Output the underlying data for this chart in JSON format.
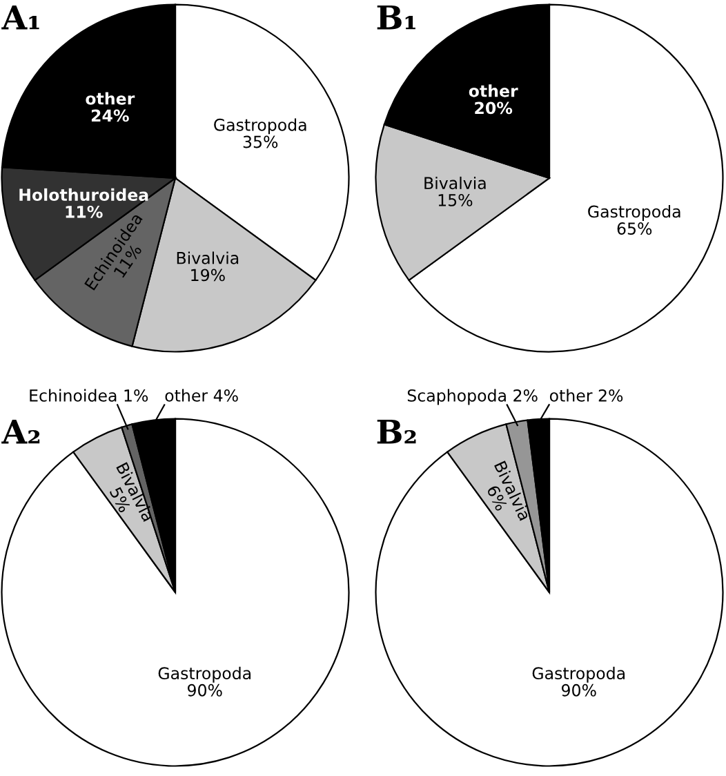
{
  "chart_data": [
    {
      "type": "pie",
      "title": "A₁",
      "categories": [
        "Gastropoda",
        "Bivalvia",
        "Echinoidea",
        "Holothuroidea",
        "other"
      ],
      "values": [
        35,
        19,
        11,
        11,
        24
      ],
      "colors": [
        "#ffffff",
        "#c8c8c8",
        "#646464",
        "#323232",
        "#000000"
      ],
      "value_labels": [
        "35%",
        "19%",
        "11%",
        "11%",
        "24%"
      ]
    },
    {
      "type": "pie",
      "title": "B₁",
      "categories": [
        "Gastropoda",
        "Bivalvia",
        "other"
      ],
      "values": [
        65,
        15,
        20
      ],
      "colors": [
        "#ffffff",
        "#c8c8c8",
        "#000000"
      ],
      "value_labels": [
        "65%",
        "15%",
        "20%"
      ]
    },
    {
      "type": "pie",
      "title": "A₂",
      "categories": [
        "Gastropoda",
        "Bivalvia",
        "Echinoidea",
        "other"
      ],
      "values": [
        90,
        5,
        1,
        4
      ],
      "colors": [
        "#ffffff",
        "#c8c8c8",
        "#646464",
        "#000000"
      ],
      "value_labels": [
        "90%",
        "5%",
        "1%",
        "4%"
      ]
    },
    {
      "type": "pie",
      "title": "B₂",
      "categories": [
        "Gastropoda",
        "Bivalvia",
        "Scaphopoda",
        "other"
      ],
      "values": [
        90,
        6,
        2,
        2
      ],
      "colors": [
        "#ffffff",
        "#c8c8c8",
        "#969696",
        "#000000"
      ],
      "value_labels": [
        "90%",
        "6%",
        "2%",
        "2%"
      ]
    }
  ]
}
